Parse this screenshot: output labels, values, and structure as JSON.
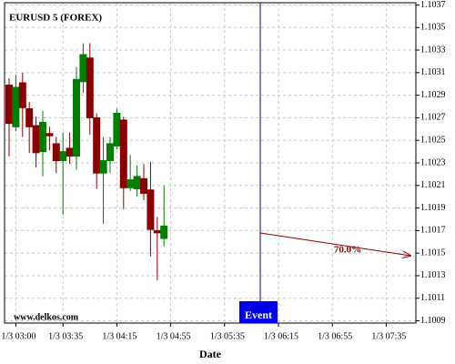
{
  "chart_data": {
    "type": "candlestick",
    "title": "EURUSD 5 (FOREX)",
    "x_label": "Date",
    "watermark": "www.delkos.com",
    "annotations": {
      "event": "Event",
      "arrow_label": "70.0%"
    },
    "categories": [
      null,
      "1/3 03:00",
      null,
      null,
      null,
      null,
      null,
      null,
      "1/3 03:35",
      null,
      null,
      null,
      null,
      null,
      null,
      null,
      "1/3 04:15",
      null,
      null,
      null,
      null,
      null,
      null,
      null,
      "1/3 04:55",
      null,
      null,
      null,
      null,
      null,
      null,
      null,
      "1/3 05:35",
      null,
      null,
      null,
      null,
      null,
      null,
      null,
      "1/3 06:15",
      null,
      null,
      null,
      null,
      null,
      null,
      null,
      "1/3 06:55",
      null,
      null,
      null,
      null,
      null,
      null,
      null,
      "1/3 07:35",
      null,
      null,
      null,
      null
    ],
    "open": [
      1.10299,
      1.10262,
      1.10301,
      1.10278,
      1.10263,
      1.1024,
      1.10256,
      1.10247,
      1.10232,
      1.10243,
      1.10236,
      1.10302,
      1.10323,
      1.1027,
      1.10221,
      1.10232,
      1.10245,
      1.10268,
      1.10208,
      1.10207,
      1.10216,
      1.10206,
      1.1017,
      1.10163,
      null,
      null,
      null,
      null,
      null,
      null,
      null,
      null,
      null,
      null,
      null,
      null,
      null,
      null,
      null,
      null,
      null,
      null,
      null,
      null,
      null,
      null,
      null,
      null,
      null,
      null,
      null,
      null,
      null,
      null,
      null,
      null,
      null,
      null,
      null,
      null,
      null
    ],
    "high": [
      1.10305,
      1.10308,
      1.1031,
      1.10284,
      1.10271,
      1.10276,
      1.10262,
      1.10253,
      1.10257,
      1.10257,
      1.10315,
      1.10336,
      1.10336,
      1.10274,
      1.10253,
      1.10253,
      1.10278,
      1.10271,
      1.10237,
      1.10228,
      1.10229,
      1.10231,
      1.10182,
      1.1021,
      null,
      null,
      null,
      null,
      null,
      null,
      null,
      null,
      null,
      null,
      null,
      null,
      null,
      null,
      null,
      null,
      null,
      null,
      null,
      null,
      null,
      null,
      null,
      null,
      null,
      null,
      null,
      null,
      null,
      null,
      null,
      null,
      null,
      null,
      null,
      null,
      null
    ],
    "low": [
      1.10236,
      1.10258,
      1.10253,
      1.10239,
      1.10226,
      1.10218,
      1.10241,
      1.10221,
      1.10184,
      1.10229,
      1.10224,
      1.10292,
      1.10255,
      1.10207,
      1.10176,
      1.10221,
      1.10242,
      1.10189,
      1.10205,
      1.102,
      1.10197,
      1.10147,
      1.10126,
      1.10156,
      null,
      null,
      null,
      null,
      null,
      null,
      null,
      null,
      null,
      null,
      null,
      null,
      null,
      null,
      null,
      null,
      null,
      null,
      null,
      null,
      null,
      null,
      null,
      null,
      null,
      null,
      null,
      null,
      null,
      null,
      null,
      null,
      null,
      null,
      null,
      null,
      null
    ],
    "close": [
      1.10265,
      1.10297,
      1.10279,
      1.10262,
      1.10239,
      1.10266,
      1.10254,
      1.10232,
      1.1024,
      1.10236,
      1.10304,
      1.10326,
      1.1027,
      1.10221,
      1.10232,
      1.10247,
      1.10274,
      1.10208,
      1.10215,
      1.10218,
      1.10203,
      1.10171,
      1.10168,
      1.10174,
      null,
      null,
      null,
      null,
      null,
      null,
      null,
      null,
      null,
      null,
      null,
      null,
      null,
      null,
      null,
      null,
      null,
      null,
      null,
      null,
      null,
      null,
      null,
      null,
      null,
      null,
      null,
      null,
      null,
      null,
      null,
      null,
      null,
      null,
      null,
      null,
      null
    ],
    "up_color": "#008000",
    "down_color": "#8b0000",
    "ylim": [
      1.10088,
      1.10372
    ],
    "yticks": [
      1.1009,
      1.1011,
      1.1013,
      1.1015,
      1.1017,
      1.1019,
      1.1021,
      1.1023,
      1.1025,
      1.1027,
      1.1029,
      1.1031,
      1.1033,
      1.1035,
      1.1037
    ],
    "grid": true
  }
}
